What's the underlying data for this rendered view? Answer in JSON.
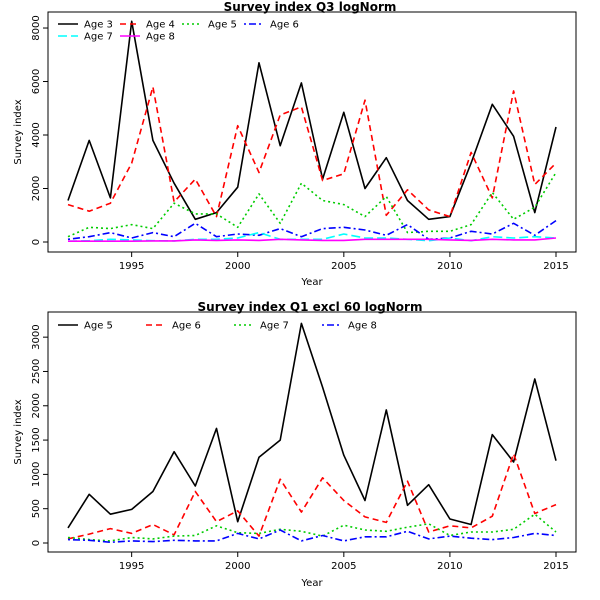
{
  "chart_data": [
    {
      "type": "line",
      "title": "Survey index Q3 logNorm",
      "xlabel": "Year",
      "ylabel": "Survey index",
      "xlim": [
        1992,
        2015
      ],
      "ylim": [
        0,
        8300
      ],
      "xticks": [
        1995,
        2000,
        2005,
        2010,
        2015
      ],
      "yticks": [
        0,
        2000,
        4000,
        6000,
        8000
      ],
      "grid": false,
      "legend_position": "top-left",
      "x": [
        1992,
        1993,
        1994,
        1995,
        1996,
        1997,
        1998,
        1999,
        2000,
        2001,
        2002,
        2003,
        2004,
        2005,
        2006,
        2007,
        2008,
        2009,
        2010,
        2011,
        2012,
        2013,
        2014,
        2015
      ],
      "series": [
        {
          "name": "Age 3",
          "color": "#000000",
          "dash": "solid",
          "values": [
            1550,
            3800,
            1650,
            8250,
            3800,
            2200,
            850,
            1100,
            2050,
            6700,
            3600,
            5950,
            2350,
            4850,
            2000,
            3150,
            1550,
            850,
            950,
            2950,
            5150,
            3950,
            1100,
            4300
          ]
        },
        {
          "name": "Age 4",
          "color": "#ff0000",
          "dash": "dashed",
          "values": [
            1400,
            1150,
            1450,
            2950,
            5800,
            1500,
            2350,
            950,
            4350,
            2600,
            4750,
            5050,
            2300,
            2550,
            5300,
            1000,
            1950,
            1200,
            950,
            3350,
            1650,
            5650,
            2150,
            2950
          ]
        },
        {
          "name": "Age 5",
          "color": "#00cc00",
          "dash": "dotted",
          "values": [
            200,
            550,
            500,
            650,
            500,
            1450,
            1050,
            1050,
            550,
            1800,
            700,
            2200,
            1550,
            1400,
            950,
            1700,
            350,
            400,
            400,
            650,
            1850,
            850,
            1300,
            2600
          ]
        },
        {
          "name": "Age 6",
          "color": "#0000ff",
          "dash": "dotdash",
          "values": [
            100,
            200,
            350,
            150,
            350,
            200,
            700,
            200,
            300,
            250,
            500,
            200,
            500,
            550,
            450,
            250,
            650,
            100,
            150,
            400,
            300,
            700,
            250,
            800
          ]
        },
        {
          "name": "Age 7",
          "color": "#00ffff",
          "dash": "longdash",
          "values": [
            30,
            50,
            100,
            80,
            50,
            40,
            100,
            100,
            150,
            350,
            100,
            100,
            100,
            300,
            150,
            150,
            100,
            50,
            150,
            50,
            200,
            150,
            200,
            150
          ]
        },
        {
          "name": "Age 8",
          "color": "#ff00ff",
          "dash": "solid",
          "values": [
            30,
            30,
            30,
            30,
            40,
            40,
            80,
            60,
            80,
            60,
            100,
            80,
            60,
            60,
            100,
            100,
            100,
            100,
            80,
            60,
            100,
            80,
            80,
            150
          ]
        }
      ]
    },
    {
      "type": "line",
      "title": "Survey index Q1 excl 60 logNorm",
      "xlabel": "Year",
      "ylabel": "Survey index",
      "xlim": [
        1992,
        2015
      ],
      "ylim": [
        0,
        3250
      ],
      "xticks": [
        1995,
        2000,
        2005,
        2010,
        2015
      ],
      "yticks": [
        0,
        500,
        1000,
        1500,
        2000,
        2500,
        3000
      ],
      "grid": false,
      "legend_position": "top",
      "x": [
        1992,
        1993,
        1994,
        1995,
        1996,
        1997,
        1998,
        1999,
        2000,
        2001,
        2002,
        2003,
        2004,
        2005,
        2006,
        2007,
        2008,
        2009,
        2010,
        2011,
        2012,
        2013,
        2014,
        2015
      ],
      "series": [
        {
          "name": "Age 5",
          "color": "#000000",
          "dash": "solid",
          "values": [
            220,
            710,
            420,
            490,
            750,
            1330,
            830,
            1670,
            310,
            1250,
            1500,
            3200,
            2270,
            1280,
            620,
            1940,
            550,
            850,
            350,
            270,
            1580,
            1180,
            2390,
            1200
          ]
        },
        {
          "name": "Age 6",
          "color": "#ff0000",
          "dash": "dashed",
          "values": [
            60,
            130,
            210,
            140,
            270,
            120,
            750,
            310,
            470,
            100,
            930,
            450,
            950,
            620,
            380,
            300,
            900,
            160,
            250,
            220,
            390,
            1300,
            430,
            560
          ]
        },
        {
          "name": "Age 7",
          "color": "#00cc00",
          "dash": "dotted",
          "values": [
            80,
            50,
            30,
            80,
            60,
            100,
            110,
            250,
            150,
            140,
            200,
            170,
            100,
            260,
            190,
            170,
            230,
            280,
            110,
            160,
            160,
            200,
            420,
            160
          ]
        },
        {
          "name": "Age 8",
          "color": "#0000ff",
          "dash": "dotdash",
          "values": [
            50,
            40,
            10,
            30,
            20,
            40,
            30,
            30,
            140,
            60,
            190,
            30,
            110,
            30,
            90,
            90,
            170,
            60,
            100,
            70,
            50,
            80,
            140,
            110
          ]
        }
      ]
    }
  ]
}
